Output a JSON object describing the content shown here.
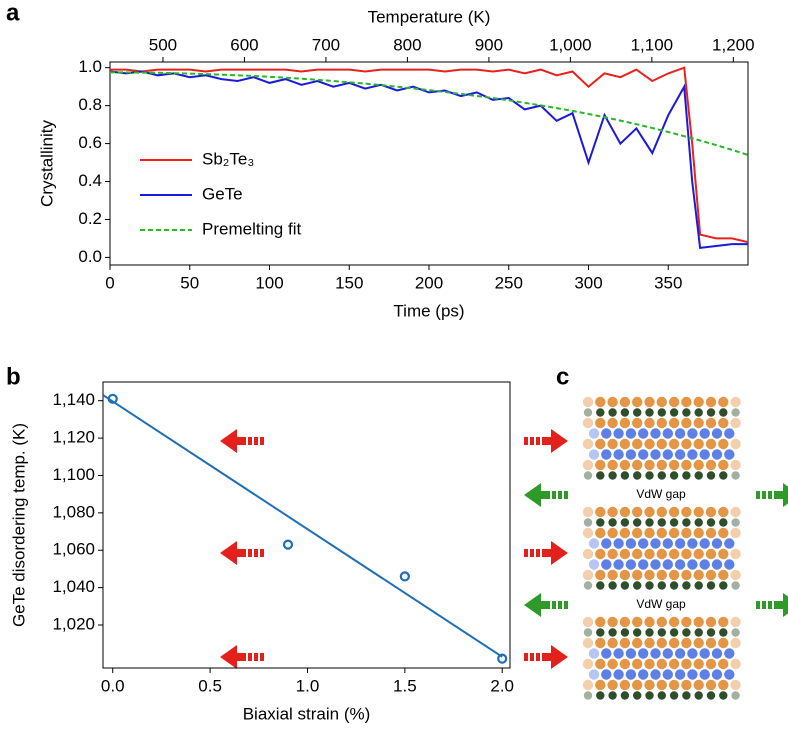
{
  "chart_data": [
    {
      "type": "line",
      "panel_label": "a",
      "xlabel": "Time (ps)",
      "ylabel": "Crystallinity",
      "x2label": "Temperature (K)",
      "xlim": [
        0,
        400
      ],
      "xticks": [
        0,
        50,
        100,
        150,
        200,
        250,
        300,
        350
      ],
      "x2lim": [
        435,
        1218
      ],
      "x2ticks": [
        500,
        600,
        700,
        800,
        900,
        {
          "value": 1000,
          "label": "1,000"
        },
        {
          "value": 1100,
          "label": "1,100"
        },
        {
          "value": 1200,
          "label": "1,200"
        }
      ],
      "ylim": [
        -0.04,
        1.03
      ],
      "yticks": [
        {
          "value": 0,
          "label": "0.0"
        },
        {
          "value": 0.2,
          "label": "0.2"
        },
        {
          "value": 0.4,
          "label": "0.4"
        },
        {
          "value": 0.6,
          "label": "0.6"
        },
        {
          "value": 0.8,
          "label": "0.8"
        },
        {
          "value": 1,
          "label": "1.0"
        }
      ],
      "x": [
        0,
        10,
        20,
        30,
        40,
        50,
        60,
        70,
        80,
        90,
        100,
        110,
        120,
        130,
        140,
        150,
        160,
        170,
        180,
        190,
        200,
        210,
        220,
        230,
        240,
        250,
        260,
        270,
        280,
        290,
        300,
        310,
        320,
        330,
        340,
        350,
        360,
        365,
        370,
        380,
        390,
        400
      ],
      "series": [
        {
          "name": "Sb₂Te₃",
          "color": "#e8211d",
          "dash": false,
          "values": [
            0.99,
            0.99,
            0.98,
            0.99,
            0.99,
            0.99,
            0.98,
            0.99,
            0.99,
            0.99,
            0.99,
            0.99,
            0.98,
            0.99,
            0.99,
            0.99,
            0.98,
            0.99,
            0.99,
            0.99,
            0.99,
            0.98,
            0.99,
            0.99,
            0.98,
            0.99,
            0.97,
            0.99,
            0.96,
            0.98,
            0.9,
            0.97,
            0.95,
            0.99,
            0.93,
            0.97,
            1.0,
            0.6,
            0.12,
            0.1,
            0.1,
            0.08
          ]
        },
        {
          "name": "GeTe",
          "color": "#1a1adb",
          "dash": false,
          "values": [
            0.98,
            0.97,
            0.98,
            0.96,
            0.97,
            0.95,
            0.96,
            0.94,
            0.93,
            0.95,
            0.92,
            0.94,
            0.91,
            0.93,
            0.9,
            0.92,
            0.89,
            0.91,
            0.88,
            0.9,
            0.87,
            0.88,
            0.85,
            0.87,
            0.83,
            0.84,
            0.78,
            0.8,
            0.72,
            0.76,
            0.5,
            0.75,
            0.6,
            0.68,
            0.55,
            0.75,
            0.9,
            0.4,
            0.05,
            0.06,
            0.07,
            0.07
          ]
        },
        {
          "name": "Premelting fit",
          "color": "#2bb52b",
          "dash": true,
          "values": [
            0.975,
            0.975,
            0.974,
            0.973,
            0.971,
            0.969,
            0.966,
            0.963,
            0.96,
            0.956,
            0.952,
            0.947,
            0.942,
            0.936,
            0.93,
            0.923,
            0.916,
            0.908,
            0.9,
            0.891,
            0.882,
            0.872,
            0.862,
            0.851,
            0.84,
            0.828,
            0.815,
            0.801,
            0.787,
            0.772,
            0.756,
            0.739,
            0.721,
            0.702,
            0.682,
            0.661,
            0.639,
            0.628,
            0.616,
            0.592,
            0.567,
            0.54
          ]
        }
      ]
    },
    {
      "type": "scatter",
      "panel_label": "b",
      "xlabel": "Biaxial strain (%)",
      "ylabel": "GeTe disordering temp. (K)",
      "xlim": [
        -0.05,
        2.04
      ],
      "xticks": [
        {
          "value": 0,
          "label": "0.0"
        },
        {
          "value": 0.5,
          "label": "0.5"
        },
        {
          "value": 1,
          "label": "1.0"
        },
        {
          "value": 1.5,
          "label": "1.5"
        },
        {
          "value": 2,
          "label": "2.0"
        }
      ],
      "ylim": [
        997,
        1150
      ],
      "yticks": [
        {
          "value": 1020,
          "label": "1,020"
        },
        {
          "value": 1040,
          "label": "1,040"
        },
        {
          "value": 1060,
          "label": "1,060"
        },
        {
          "value": 1080,
          "label": "1,080"
        },
        {
          "value": 1100,
          "label": "1,100"
        },
        {
          "value": 1120,
          "label": "1,120"
        },
        {
          "value": 1140,
          "label": "1,140"
        }
      ],
      "series": [
        {
          "style": "markers",
          "color": "#1f6fb5",
          "x": [
            0,
            0.9,
            1.5,
            2.0
          ],
          "values": [
            1141,
            1063,
            1046,
            1002
          ]
        },
        {
          "style": "line",
          "color": "#1f6fb5",
          "x": [
            -0.05,
            2.0
          ],
          "values": [
            1143,
            1003
          ]
        }
      ]
    }
  ],
  "panel_c": {
    "panel_label": "c",
    "gap_labels": [
      "VdW gap",
      "VdW gap"
    ]
  }
}
